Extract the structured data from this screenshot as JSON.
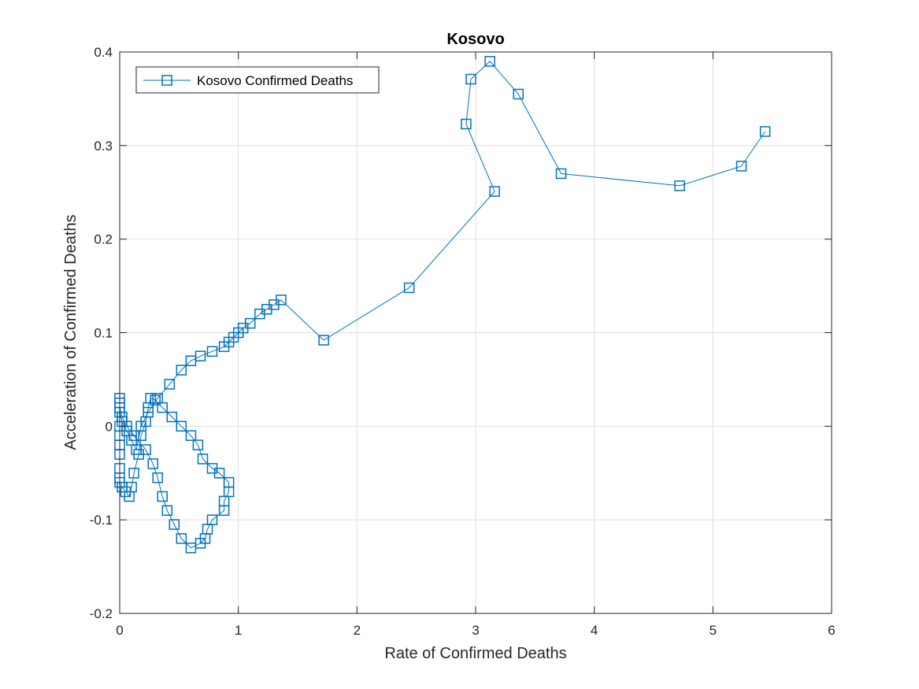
{
  "chart_data": {
    "type": "line",
    "title": "Kosovo",
    "xlabel": "Rate of Confirmed Deaths",
    "ylabel": "Acceleration of Confirmed Deaths",
    "xlim": [
      0,
      6
    ],
    "ylim": [
      -0.2,
      0.4
    ],
    "xticks": [
      0,
      1,
      2,
      3,
      4,
      5,
      6
    ],
    "yticks": [
      -0.2,
      -0.1,
      0,
      0.1,
      0.2,
      0.3,
      0.4
    ],
    "xtick_labels": [
      "0",
      "1",
      "2",
      "3",
      "4",
      "5",
      "6"
    ],
    "ytick_labels": [
      "-0.2",
      "-0.1",
      "0",
      "0.1",
      "0.2",
      "0.3",
      "0.4"
    ],
    "grid": true,
    "legend_position": "top-left",
    "series": [
      {
        "name": "Kosovo Confirmed Deaths",
        "color": "#0072BD",
        "marker": "square",
        "x": [
          0,
          0,
          0,
          0,
          0,
          0,
          0,
          0.02,
          0.05,
          0.08,
          0.1,
          0.12,
          0.16,
          0.18,
          0.22,
          0.24,
          0.26,
          0.3,
          0.36,
          0.44,
          0.52,
          0.6,
          0.66,
          0.7,
          0.78,
          0.84,
          0.92,
          0.92,
          0.88,
          0.88,
          0.78,
          0.74,
          0.72,
          0.68,
          0.6,
          0.52,
          0.46,
          0.4,
          0.36,
          0.32,
          0.28,
          0.22,
          0.12,
          0.06,
          0.02,
          0,
          0,
          0,
          0,
          0.02,
          0.06,
          0.1,
          0.14,
          0.18,
          0.24,
          0.32,
          0.42,
          0.52,
          0.6,
          0.68,
          0.78,
          0.88,
          0.92,
          0.96,
          1.0,
          1.04,
          1.1,
          1.18,
          1.24,
          1.3,
          1.36,
          1.72,
          2.44,
          3.16,
          2.92,
          2.96,
          3.12,
          3.36,
          3.72,
          4.72,
          5.24,
          5.44
        ],
        "y": [
          0,
          -0.01,
          -0.02,
          -0.03,
          -0.045,
          -0.055,
          -0.06,
          -0.065,
          -0.07,
          -0.075,
          -0.065,
          -0.05,
          -0.03,
          -0.01,
          0.005,
          0.02,
          0.03,
          0.028,
          0.02,
          0.01,
          0.0,
          -0.01,
          -0.02,
          -0.035,
          -0.045,
          -0.05,
          -0.06,
          -0.07,
          -0.08,
          -0.09,
          -0.1,
          -0.11,
          -0.12,
          -0.125,
          -0.13,
          -0.12,
          -0.105,
          -0.09,
          -0.075,
          -0.055,
          -0.04,
          -0.025,
          -0.01,
          0.0,
          0.01,
          0.02,
          0.03,
          0.025,
          0.015,
          0.005,
          -0.005,
          -0.015,
          -0.025,
          0.0,
          0.015,
          0.03,
          0.045,
          0.06,
          0.07,
          0.075,
          0.08,
          0.085,
          0.09,
          0.095,
          0.1,
          0.105,
          0.11,
          0.12,
          0.125,
          0.13,
          0.135,
          0.092,
          0.148,
          0.251,
          0.323,
          0.371,
          0.39,
          0.355,
          0.27,
          0.257,
          0.278,
          0.315
        ]
      }
    ]
  }
}
